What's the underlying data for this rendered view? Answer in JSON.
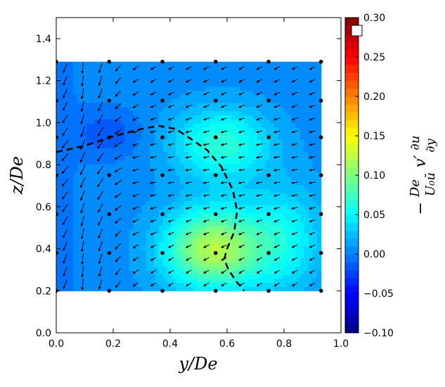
{
  "chart_data": {
    "type": "heatmap",
    "title": "",
    "xlabel": "y/De",
    "ylabel": "z/De",
    "xlim": [
      0.0,
      1.0
    ],
    "ylim": [
      0.0,
      1.5
    ],
    "x_ticks": [
      "0.0",
      "0.2",
      "0.4",
      "0.6",
      "0.8",
      "1.0"
    ],
    "y_ticks": [
      "0.0",
      "0.2",
      "0.4",
      "0.6",
      "0.8",
      "1.0",
      "1.2",
      "1.4"
    ],
    "data_extent": {
      "x": [
        0.0,
        0.93
      ],
      "z": [
        0.2,
        1.29
      ]
    },
    "colorbar": {
      "label": "−(De / U₀ū) · v′ ∂u/∂y",
      "range": [
        -0.1,
        0.3
      ],
      "ticks": [
        "−0.10",
        "−0.05",
        "0.00",
        "0.05",
        "0.10",
        "0.15",
        "0.20",
        "0.25",
        "0.30"
      ],
      "colormap": "jet"
    },
    "field_peak": {
      "y": 0.55,
      "z": 0.4,
      "value": 0.12
    },
    "field_secondary_peak": {
      "y": 0.58,
      "z": 0.9,
      "value": 0.075
    },
    "field_background": 0.005,
    "probe_points": {
      "y": [
        0.0,
        0.186,
        0.373,
        0.56,
        0.746,
        0.93
      ],
      "z": [
        0.2,
        0.38,
        0.565,
        0.75,
        0.93,
        1.105,
        1.29
      ]
    },
    "dashed_contour": [
      [
        0.0,
        0.86
      ],
      [
        0.1,
        0.89
      ],
      [
        0.2,
        0.935
      ],
      [
        0.3,
        0.97
      ],
      [
        0.36,
        0.985
      ],
      [
        0.42,
        0.97
      ],
      [
        0.47,
        0.925
      ],
      [
        0.53,
        0.87
      ],
      [
        0.58,
        0.79
      ],
      [
        0.62,
        0.68
      ],
      [
        0.635,
        0.58
      ],
      [
        0.625,
        0.48
      ],
      [
        0.6,
        0.4
      ],
      [
        0.59,
        0.35
      ],
      [
        0.605,
        0.3
      ],
      [
        0.635,
        0.24
      ],
      [
        0.66,
        0.2
      ]
    ],
    "vector_field": "secondary flow (v, w) on a regular grid; vectors point mostly down-left, downward on the left edge",
    "marker": {
      "shape": "white square",
      "position": "top of colorbar"
    }
  }
}
